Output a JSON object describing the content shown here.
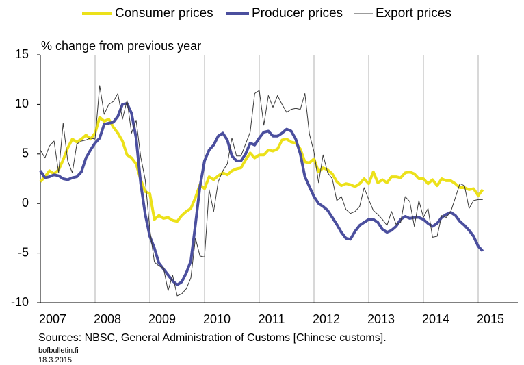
{
  "chart_data": {
    "type": "line",
    "axis_label": "% change from previous year",
    "source": "Sources: NBSC, General Administration of Customs [Chinese customs].",
    "site": "bofbulletin.fi",
    "date": "18.3.2015",
    "categories": [
      "2007",
      null,
      null,
      null,
      null,
      null,
      null,
      null,
      null,
      null,
      null,
      null,
      "2008",
      null,
      null,
      null,
      null,
      null,
      null,
      null,
      null,
      null,
      null,
      null,
      "2009",
      null,
      null,
      null,
      null,
      null,
      null,
      null,
      null,
      null,
      null,
      null,
      "2010",
      null,
      null,
      null,
      null,
      null,
      null,
      null,
      null,
      null,
      null,
      null,
      "2011",
      null,
      null,
      null,
      null,
      null,
      null,
      null,
      null,
      null,
      null,
      null,
      "2012",
      null,
      null,
      null,
      null,
      null,
      null,
      null,
      null,
      null,
      null,
      null,
      "2013",
      null,
      null,
      null,
      null,
      null,
      null,
      null,
      null,
      null,
      null,
      null,
      "2014",
      null,
      null,
      null,
      null,
      null,
      null,
      null,
      null,
      null,
      null,
      null,
      "2015",
      null
    ],
    "ylim": [
      -10,
      15
    ],
    "yticks": [
      -10,
      -5,
      0,
      5,
      10,
      15
    ],
    "series": [
      {
        "name": "Consumer prices",
        "color": "#ece11a",
        "width": 4,
        "values": [
          2.2,
          2.7,
          3.3,
          3.0,
          3.4,
          4.4,
          5.6,
          6.5,
          6.2,
          6.5,
          6.9,
          6.5,
          7.1,
          8.7,
          8.3,
          8.5,
          7.7,
          7.1,
          6.3,
          4.9,
          4.6,
          4.0,
          2.4,
          1.2,
          1.0,
          -1.6,
          -1.2,
          -1.5,
          -1.4,
          -1.7,
          -1.8,
          -1.2,
          -0.8,
          -0.5,
          0.6,
          1.9,
          1.5,
          2.7,
          2.4,
          2.8,
          3.1,
          2.9,
          3.3,
          3.5,
          3.6,
          4.4,
          5.1,
          4.6,
          4.9,
          4.9,
          5.4,
          5.3,
          5.5,
          6.4,
          6.5,
          6.2,
          6.1,
          5.5,
          4.2,
          4.1,
          4.5,
          3.2,
          3.6,
          3.4,
          3.0,
          2.2,
          1.8,
          2.0,
          1.9,
          1.7,
          2.0,
          2.5,
          2.0,
          3.2,
          2.1,
          2.4,
          2.1,
          2.7,
          2.7,
          2.6,
          3.1,
          3.2,
          3.0,
          2.5,
          2.5,
          2.0,
          2.4,
          1.8,
          2.5,
          2.3,
          2.3,
          2.0,
          1.6,
          1.6,
          1.4,
          1.5,
          0.8,
          1.4
        ]
      },
      {
        "name": "Producer prices",
        "color": "#4b4f9e",
        "width": 4,
        "values": [
          3.3,
          2.6,
          2.7,
          2.9,
          2.8,
          2.5,
          2.4,
          2.6,
          2.7,
          3.2,
          4.6,
          5.4,
          6.1,
          6.6,
          8.0,
          8.1,
          8.2,
          8.8,
          10.0,
          10.1,
          9.1,
          6.6,
          2.0,
          -1.1,
          -3.3,
          -4.5,
          -6.0,
          -6.6,
          -7.2,
          -7.8,
          -8.2,
          -7.9,
          -7.0,
          -5.8,
          -2.1,
          1.7,
          4.3,
          5.4,
          5.9,
          6.8,
          7.1,
          6.4,
          4.8,
          4.3,
          4.3,
          5.0,
          6.1,
          5.9,
          6.6,
          7.2,
          7.3,
          6.8,
          6.8,
          7.1,
          7.5,
          7.3,
          6.5,
          5.0,
          2.7,
          1.7,
          0.7,
          0.0,
          -0.3,
          -0.7,
          -1.4,
          -2.1,
          -2.9,
          -3.5,
          -3.6,
          -2.8,
          -2.2,
          -1.9,
          -1.6,
          -1.6,
          -1.9,
          -2.6,
          -2.9,
          -2.7,
          -2.3,
          -1.6,
          -1.3,
          -1.5,
          -1.4,
          -1.4,
          -1.6,
          -2.0,
          -2.3,
          -2.0,
          -1.4,
          -1.1,
          -0.9,
          -1.2,
          -1.8,
          -2.2,
          -2.7,
          -3.3,
          -4.3,
          -4.8
        ]
      },
      {
        "name": "Export prices",
        "color": "#3a3a3a",
        "width": 1,
        "values": [
          5.4,
          4.6,
          5.8,
          6.3,
          3.1,
          8.1,
          4.3,
          3.1,
          6.0,
          6.3,
          6.4,
          6.6,
          6.5,
          11.9,
          9.0,
          10.0,
          10.3,
          11.1,
          8.5,
          10.4,
          7.1,
          8.4,
          4.7,
          2.4,
          -2.6,
          -5.9,
          -6.3,
          -6.5,
          -8.8,
          -7.2,
          -9.3,
          -9.1,
          -8.6,
          -7.5,
          -3.5,
          -5.3,
          -5.4,
          1.4,
          -0.8,
          2.2,
          3.3,
          4.0,
          6.6,
          4.8,
          4.8,
          6.0,
          7.2,
          11.1,
          11.4,
          7.9,
          10.9,
          9.7,
          10.9,
          10.0,
          9.2,
          9.5,
          9.6,
          9.5,
          11.1,
          7.0,
          5.2,
          2.1,
          4.9,
          3.1,
          2.5,
          0.3,
          0.7,
          -0.6,
          -1.0,
          -0.8,
          -0.3,
          1.6,
          0.4,
          -0.7,
          -1.1,
          -1.6,
          -2.2,
          -0.8,
          -2.1,
          -1.9,
          0.7,
          0.2,
          -2.3,
          0.3,
          -1.4,
          -0.5,
          -3.4,
          -3.3,
          -1.2,
          -1.4,
          -0.8,
          0.6,
          2.0,
          1.8,
          -0.5,
          0.3,
          0.4,
          0.4
        ]
      }
    ]
  }
}
